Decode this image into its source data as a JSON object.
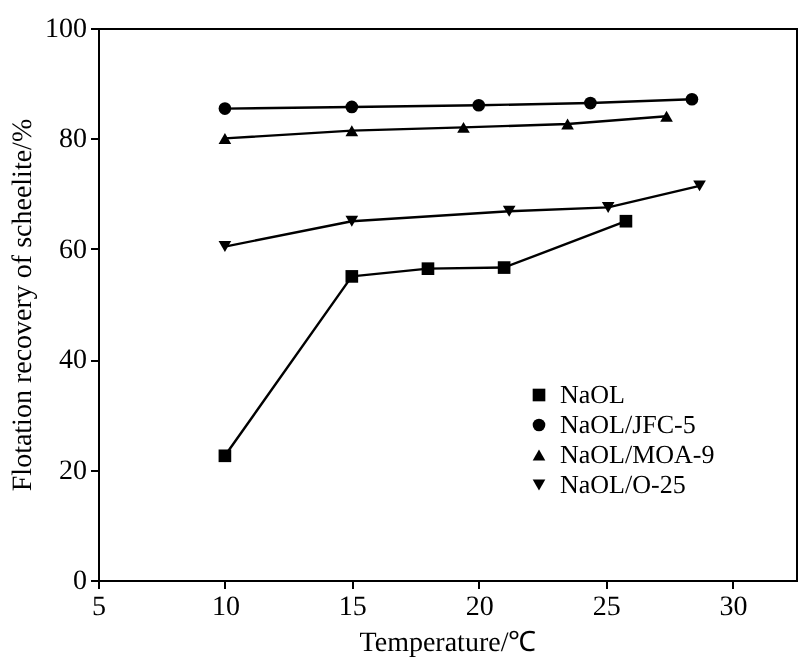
{
  "chart_data": {
    "type": "line",
    "xlabel": "Temperature/℃",
    "ylabel": "Flotation recovery of scheelite/%",
    "xlim": [
      5,
      32.5
    ],
    "xticks": [
      5,
      10,
      15,
      20,
      25,
      30
    ],
    "ylim": [
      0,
      100
    ],
    "yticks": [
      0,
      20,
      40,
      60,
      80,
      100
    ],
    "grid": false,
    "legend": "bottom right",
    "series": [
      {
        "name": "NaOL",
        "color": "#000000",
        "marker": "square",
        "x": [
          10,
          15,
          18,
          21,
          25.8
        ],
        "values": [
          22.5,
          55,
          56.4,
          56.6,
          65
        ]
      },
      {
        "name": "NaOL/JFC-5",
        "color": "#000000",
        "marker": "circle",
        "x": [
          10,
          15,
          20,
          24.4,
          28.4
        ],
        "values": [
          85.4,
          85.7,
          86,
          86.4,
          87.1
        ]
      },
      {
        "name": "NaOL/MOA-9",
        "color": "#000000",
        "marker": "triangle",
        "x": [
          10,
          15,
          19.4,
          23.5,
          27.4
        ],
        "values": [
          80,
          81.4,
          82,
          82.6,
          84
        ]
      },
      {
        "name": "NaOL/O-25",
        "color": "#000000",
        "marker": "triangle-down",
        "x": [
          10,
          15,
          21.2,
          25.1,
          28.7
        ],
        "values": [
          60.4,
          65,
          66.8,
          67.5,
          71.4
        ]
      }
    ]
  }
}
